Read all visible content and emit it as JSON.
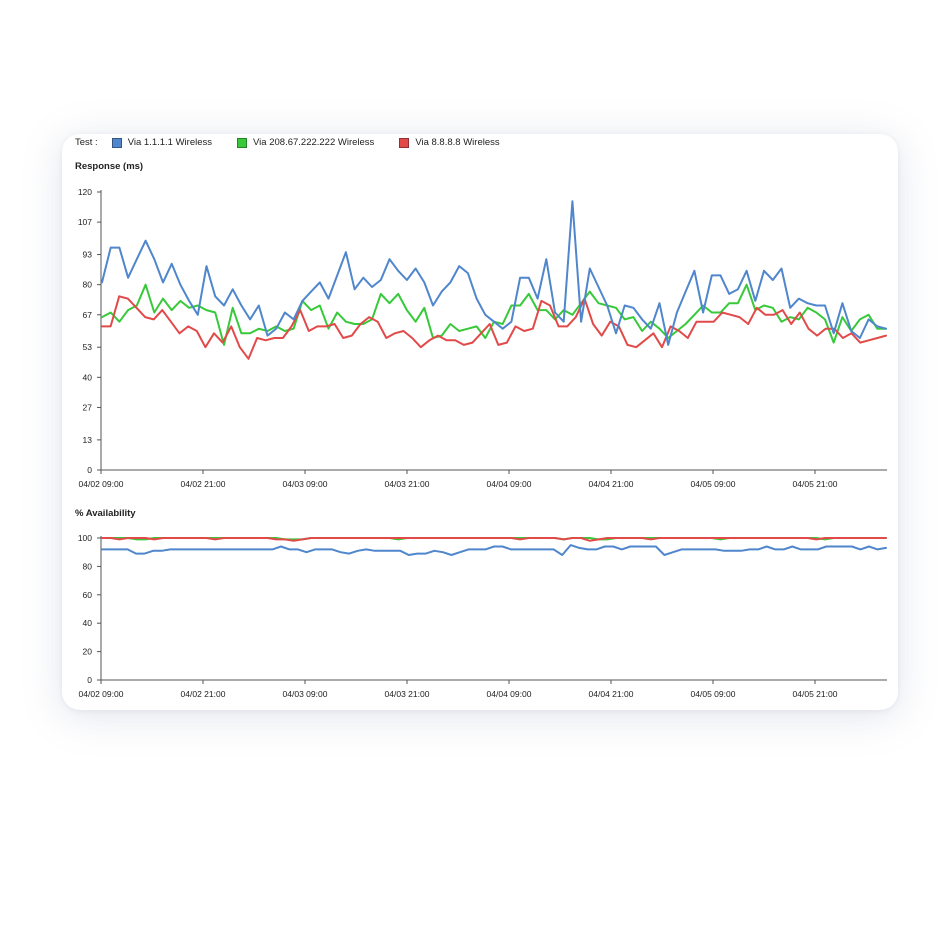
{
  "legend": {
    "title": "Test :",
    "items": [
      {
        "label": "Via 1.1.1.1 Wireless",
        "color": "#4f86cc"
      },
      {
        "label": "Via 208.67.222.222 Wireless",
        "color": "#38c93a"
      },
      {
        "label": "Via 8.8.8.8 Wireless",
        "color": "#e24a4a"
      }
    ]
  },
  "chart_data": [
    {
      "type": "line",
      "title": "Response (ms)",
      "xlabel": "",
      "ylabel": "",
      "ylim": [
        0,
        120
      ],
      "yticks": [
        "0",
        "13",
        "27",
        "40",
        "53",
        "67",
        "80",
        "93",
        "107",
        "120"
      ],
      "xtick_labels": [
        "04/02 09:00",
        "04/02 21:00",
        "04/03 09:00",
        "04/03 21:00",
        "04/04 09:00",
        "04/04 21:00",
        "04/05 09:00",
        "04/05 21:00"
      ],
      "grid": false,
      "series": [
        {
          "name": "Via 1.1.1.1 Wireless",
          "color": "#4f86cc",
          "values": [
            81,
            96,
            96,
            83,
            91,
            99,
            91,
            81,
            89,
            80,
            73,
            67,
            88,
            75,
            71,
            78,
            71,
            65,
            71,
            58,
            61,
            68,
            65,
            73,
            77,
            81,
            74,
            84,
            94,
            78,
            83,
            79,
            82,
            91,
            86,
            82,
            87,
            81,
            71,
            77,
            81,
            88,
            85,
            74,
            67,
            64,
            61,
            64,
            83,
            83,
            74,
            91,
            68,
            64,
            116,
            64,
            87,
            79,
            71,
            59,
            71,
            70,
            65,
            61,
            72,
            54,
            68,
            77,
            86,
            68,
            84,
            84,
            76,
            78,
            86,
            73,
            86,
            82,
            87,
            70,
            74,
            72,
            71,
            71,
            59,
            72,
            60,
            57,
            65,
            62,
            61
          ]
        },
        {
          "name": "Via 208.67.222.222 Wireless",
          "color": "#38c93a",
          "values": [
            66,
            68,
            64,
            69,
            71,
            80,
            68,
            74,
            69,
            73,
            70,
            71,
            69,
            68,
            54,
            70,
            59,
            59,
            61,
            60,
            62,
            60,
            61,
            73,
            69,
            71,
            61,
            68,
            64,
            63,
            63,
            65,
            76,
            72,
            76,
            69,
            64,
            70,
            57,
            58,
            63,
            60,
            61,
            62,
            57,
            64,
            63,
            71,
            71,
            76,
            69,
            69,
            65,
            69,
            67,
            72,
            77,
            72,
            71,
            70,
            65,
            66,
            60,
            64,
            61,
            57,
            60,
            63,
            67,
            71,
            68,
            68,
            72,
            72,
            80,
            69,
            71,
            70,
            64,
            66,
            65,
            70,
            68,
            65,
            55,
            66,
            60,
            65,
            67,
            61,
            61
          ]
        },
        {
          "name": "Via 8.8.8.8 Wireless",
          "color": "#e24a4a",
          "values": [
            62,
            62,
            75,
            74,
            70,
            66,
            65,
            69,
            64,
            59,
            62,
            60,
            53,
            59,
            55,
            62,
            53,
            48,
            57,
            56,
            57,
            57,
            62,
            69,
            60,
            62,
            62,
            63,
            57,
            58,
            63,
            66,
            64,
            57,
            59,
            60,
            57,
            53,
            56,
            58,
            56,
            56,
            54,
            55,
            59,
            63,
            54,
            55,
            62,
            60,
            61,
            73,
            71,
            62,
            62,
            66,
            74,
            63,
            58,
            64,
            62,
            54,
            53,
            56,
            59,
            53,
            62,
            60,
            57,
            64,
            64,
            64,
            68,
            67,
            66,
            63,
            70,
            67,
            67,
            69,
            63,
            68,
            61,
            58,
            61,
            61,
            57,
            59,
            55,
            56,
            57,
            58
          ]
        }
      ]
    },
    {
      "type": "line",
      "title": "% Availability",
      "xlabel": "",
      "ylabel": "",
      "ylim": [
        0,
        100
      ],
      "yticks": [
        "0",
        "20",
        "40",
        "60",
        "80",
        "100"
      ],
      "xtick_labels": [
        "04/02 09:00",
        "04/02 21:00",
        "04/03 09:00",
        "04/03 21:00",
        "04/04 09:00",
        "04/04 21:00",
        "04/05 09:00",
        "04/05 21:00"
      ],
      "grid": false,
      "series": [
        {
          "name": "Via 1.1.1.1 Wireless",
          "color": "#4f86cc",
          "values": [
            92,
            92,
            92,
            92,
            89,
            89,
            91,
            91,
            92,
            92,
            92,
            92,
            92,
            92,
            92,
            92,
            92,
            92,
            92,
            92,
            92,
            94,
            92,
            92,
            90,
            92,
            92,
            92,
            90,
            89,
            91,
            92,
            91,
            91,
            91,
            91,
            88,
            89,
            89,
            91,
            90,
            88,
            90,
            92,
            92,
            92,
            94,
            94,
            92,
            92,
            92,
            92,
            92,
            92,
            88,
            95,
            93,
            92,
            92,
            94,
            94,
            92,
            94,
            94,
            94,
            94,
            88,
            90,
            92,
            92,
            92,
            92,
            92,
            91,
            91,
            91,
            92,
            92,
            94,
            92,
            92,
            94,
            92,
            92,
            92,
            94,
            94,
            94,
            94,
            92,
            94,
            92,
            93
          ]
        },
        {
          "name": "Via 208.67.222.222 Wireless",
          "color": "#38c93a",
          "values": [
            100,
            100,
            100,
            100,
            99,
            99,
            100,
            100,
            100,
            100,
            100,
            100,
            100,
            100,
            100,
            100,
            100,
            100,
            100,
            100,
            100,
            99,
            99,
            99,
            100,
            100,
            100,
            100,
            100,
            100,
            100,
            100,
            100,
            100,
            99,
            100,
            100,
            100,
            100,
            100,
            100,
            100,
            100,
            100,
            100,
            100,
            100,
            100,
            100,
            100,
            100,
            100,
            100,
            99,
            100,
            100,
            100,
            99,
            99,
            100,
            100,
            100,
            100,
            100,
            100,
            100,
            100,
            100,
            100,
            100,
            100,
            99,
            100,
            100,
            100,
            100,
            100,
            100,
            100,
            100,
            100,
            100,
            100,
            99,
            100,
            100,
            100,
            100,
            100,
            100,
            100
          ]
        },
        {
          "name": "Via 8.8.8.8 Wireless",
          "color": "#e24a4a",
          "values": [
            100,
            100,
            99,
            100,
            100,
            100,
            99,
            100,
            100,
            100,
            100,
            100,
            100,
            99,
            100,
            100,
            100,
            100,
            100,
            100,
            99,
            99,
            98,
            99,
            100,
            100,
            100,
            100,
            100,
            100,
            100,
            100,
            100,
            100,
            100,
            100,
            100,
            100,
            100,
            100,
            100,
            100,
            100,
            100,
            100,
            100,
            100,
            100,
            99,
            100,
            100,
            100,
            100,
            99,
            100,
            100,
            98,
            99,
            100,
            100,
            100,
            100,
            100,
            99,
            100,
            100,
            100,
            100,
            100,
            100,
            100,
            100,
            100,
            100,
            100,
            100,
            100,
            100,
            100,
            100,
            100,
            100,
            99,
            100,
            100,
            100,
            100,
            100,
            100,
            100,
            100
          ]
        }
      ]
    }
  ]
}
